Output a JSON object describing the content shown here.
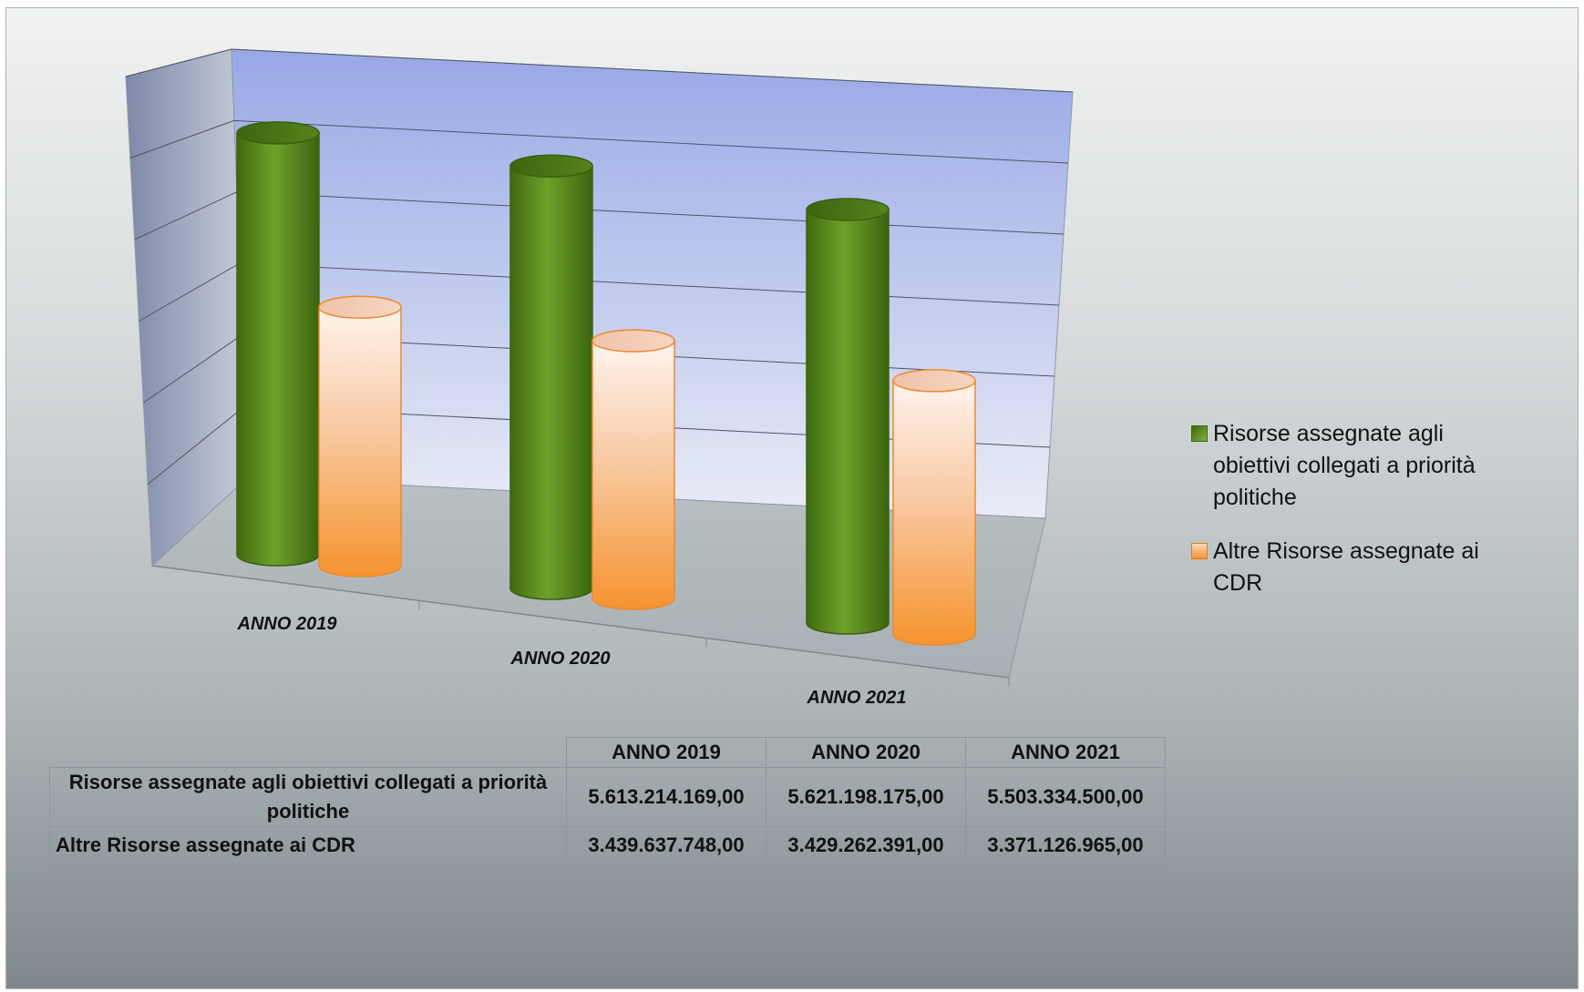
{
  "chart_data": {
    "type": "bar",
    "style": "3d-cylinder",
    "categories": [
      "ANNO 2019",
      "ANNO 2020",
      "ANNO 2021"
    ],
    "series": [
      {
        "name": "Risorse assegnate agli obiettivi collegati a priorità politiche",
        "values": [
          5613214169.0,
          5621198175.0,
          5503334500.0
        ],
        "color": "#5e8c1f"
      },
      {
        "name": "Altre Risorse assegnate ai CDR",
        "values": [
          3439637748.0,
          3429262391.0,
          3371126965.0
        ],
        "color": "#f7a04e"
      }
    ],
    "ylim": [
      0,
      6000000000
    ],
    "grid": true,
    "legend_position": "right",
    "title": "",
    "xlabel": "",
    "ylabel": ""
  },
  "legend": [
    {
      "label": "Risorse assegnate agli obiettivi collegati a priorità politiche",
      "color": "#5e8c1f"
    },
    {
      "label": "Altre Risorse assegnate ai CDR",
      "color": "#f7a04e"
    }
  ],
  "table": {
    "headers": [
      "ANNO 2019",
      "ANNO 2020",
      "ANNO 2021"
    ],
    "rows": [
      {
        "label": "Risorse assegnate agli obiettivi collegati a priorità politiche",
        "values": [
          "5.613.214.169,00",
          "5.621.198.175,00",
          "5.503.334.500,00"
        ]
      },
      {
        "label": "Altre Risorse assegnate ai CDR",
        "values": [
          "3.439.637.748,00",
          "3.429.262.391,00",
          "3.371.126.965,00"
        ]
      }
    ]
  }
}
